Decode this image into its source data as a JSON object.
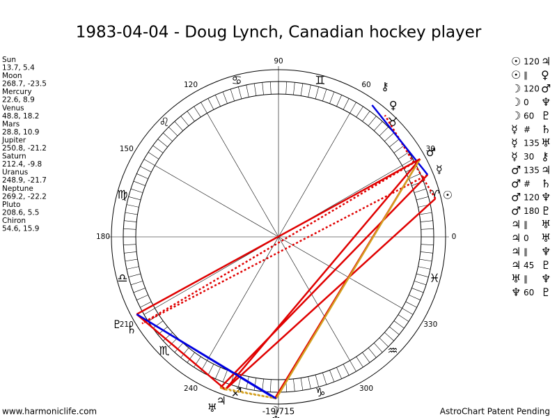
{
  "header": {
    "title": "1983-04-04 - Doug Lynch, Canadian hockey player"
  },
  "planets": [
    {
      "name": "Sun",
      "position": "13.7, 5.4",
      "glyph": "☉"
    },
    {
      "name": "Moon",
      "position": "268.7, -23.5",
      "glyph": "☽"
    },
    {
      "name": "Mercury",
      "position": "22.6, 8.9",
      "glyph": "☿"
    },
    {
      "name": "Venus",
      "position": "48.8, 18.2",
      "glyph": "♀"
    },
    {
      "name": "Mars",
      "position": "28.8, 10.9",
      "glyph": "♂"
    },
    {
      "name": "Jupiter",
      "position": "250.8, -21.2",
      "glyph": "♃"
    },
    {
      "name": "Saturn",
      "position": "212.4, -9.8",
      "glyph": "♄"
    },
    {
      "name": "Uranus",
      "position": "248.9, -21.7",
      "glyph": "♅"
    },
    {
      "name": "Neptune",
      "position": "269.2, -22.2",
      "glyph": "♆"
    },
    {
      "name": "Pluto",
      "position": "208.6, 5.5",
      "glyph": "♇"
    },
    {
      "name": "Chiron",
      "position": "54.6, 15.9",
      "glyph": "⚷"
    }
  ],
  "aspects": [
    {
      "p1": 0,
      "aspect": "120",
      "p2": 5,
      "color": "#e00000",
      "dotted": false
    },
    {
      "p1": 0,
      "aspect": "∥",
      "p2": 3,
      "color": "#e00000",
      "dotted": true
    },
    {
      "p1": 1,
      "aspect": "120",
      "p2": 4,
      "color": "#e00000",
      "dotted": false
    },
    {
      "p1": 1,
      "aspect": "0",
      "p2": 8,
      "color": "#d4a020",
      "dotted": false
    },
    {
      "p1": 1,
      "aspect": "60",
      "p2": 9,
      "color": "#0000e0",
      "dotted": false
    },
    {
      "p1": 2,
      "aspect": "#",
      "p2": 6,
      "color": "#e00000",
      "dotted": true
    },
    {
      "p1": 2,
      "aspect": "135",
      "p2": 7,
      "color": "#e00000",
      "dotted": false
    },
    {
      "p1": 2,
      "aspect": "30",
      "p2": 10,
      "color": "#0000e0",
      "dotted": false
    },
    {
      "p1": 4,
      "aspect": "135",
      "p2": 5,
      "color": "#e00000",
      "dotted": false
    },
    {
      "p1": 4,
      "aspect": "#",
      "p2": 6,
      "color": "#e00000",
      "dotted": true
    },
    {
      "p1": 4,
      "aspect": "120",
      "p2": 8,
      "color": "#d4a020",
      "dotted": false
    },
    {
      "p1": 4,
      "aspect": "180",
      "p2": 9,
      "color": "#e00000",
      "dotted": false
    },
    {
      "p1": 5,
      "aspect": "∥",
      "p2": 7,
      "color": "#d4a020",
      "dotted": true
    },
    {
      "p1": 5,
      "aspect": "0",
      "p2": 7,
      "color": "#d4a020",
      "dotted": false
    },
    {
      "p1": 5,
      "aspect": "∥",
      "p2": 8,
      "color": "#d4a020",
      "dotted": true
    },
    {
      "p1": 5,
      "aspect": "45",
      "p2": 9,
      "color": "#e00000",
      "dotted": false
    },
    {
      "p1": 7,
      "aspect": "∥",
      "p2": 8,
      "color": "#d4a020",
      "dotted": true
    },
    {
      "p1": 8,
      "aspect": "60",
      "p2": 9,
      "color": "#0000e0",
      "dotted": false
    }
  ],
  "wheel": {
    "signs": [
      "♈",
      "♉",
      "♊",
      "♋",
      "♌",
      "♍",
      "♎",
      "♏",
      "♐",
      "♑",
      "♒",
      "♓"
    ],
    "degree_labels": [
      0,
      30,
      60,
      90,
      120,
      150,
      180,
      210,
      240,
      300,
      330
    ],
    "bottom_label": "-19/715"
  },
  "footer": {
    "left": "www.harmoniclife.com",
    "right": "AstroChart Patent Pending"
  }
}
